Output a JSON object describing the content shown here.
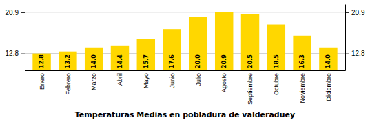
{
  "chart_data": {
    "type": "bar",
    "title": "Temperaturas Medias en pobladura de valderaduey",
    "categories": [
      "Enero",
      "Febrero",
      "Marzo",
      "Abril",
      "Mayo",
      "Junio",
      "Julio",
      "Agosto",
      "Septiembre",
      "Octubre",
      "Noviembre",
      "Diciembre"
    ],
    "values": [
      12.8,
      13.2,
      14.0,
      14.4,
      15.7,
      17.6,
      20.0,
      20.9,
      20.5,
      18.5,
      16.3,
      14.0
    ],
    "value_labels": [
      "12.8",
      "13.2",
      "14.0",
      "14.4",
      "15.7",
      "17.6",
      "20.0",
      "20.9",
      "20.5",
      "18.5",
      "16.3",
      "14.0"
    ],
    "color": "#FFD700",
    "ylim": [
      9.5,
      22.5
    ],
    "yticks": [
      12.8,
      20.9
    ],
    "grid": true,
    "data_labels": true
  }
}
